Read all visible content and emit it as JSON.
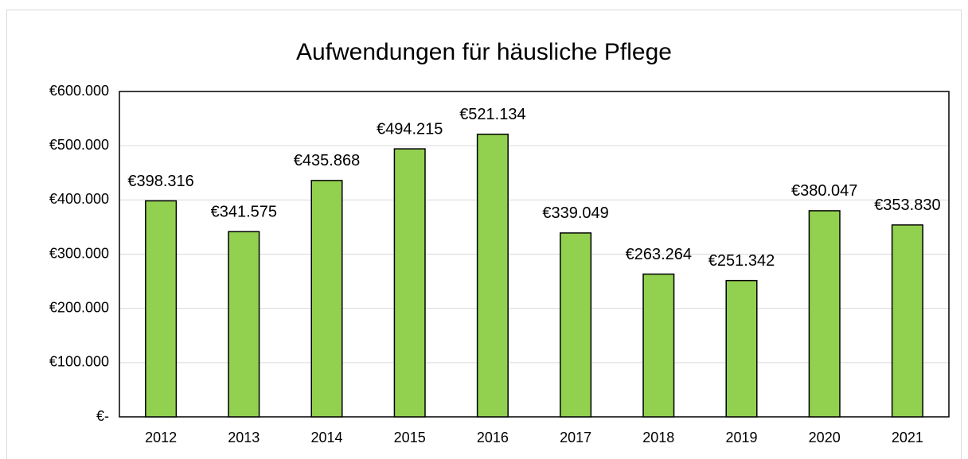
{
  "chart_data": {
    "type": "bar",
    "title": "Aufwendungen für häusliche Pflege",
    "categories": [
      "2012",
      "2013",
      "2014",
      "2015",
      "2016",
      "2017",
      "2018",
      "2019",
      "2020",
      "2021"
    ],
    "values": [
      398316,
      341575,
      435868,
      494215,
      521134,
      339049,
      263264,
      251342,
      380047,
      353830
    ],
    "value_labels": [
      "€398.316",
      "€341.575",
      "€435.868",
      "€494.215",
      "€521.134",
      "€339.049",
      "€263.264",
      "€251.342",
      "€380.047",
      "€353.830"
    ],
    "color": "#92d050",
    "ylim": [
      0,
      600000
    ],
    "yticks": [
      {
        "value": 0,
        "label": "€-"
      },
      {
        "value": 100000,
        "label": "€100.000"
      },
      {
        "value": 200000,
        "label": "€200.000"
      },
      {
        "value": 300000,
        "label": "€300.000"
      },
      {
        "value": 400000,
        "label": "€400.000"
      },
      {
        "value": 500000,
        "label": "€500.000"
      },
      {
        "value": 600000,
        "label": "€600.000"
      }
    ],
    "grid": true
  }
}
